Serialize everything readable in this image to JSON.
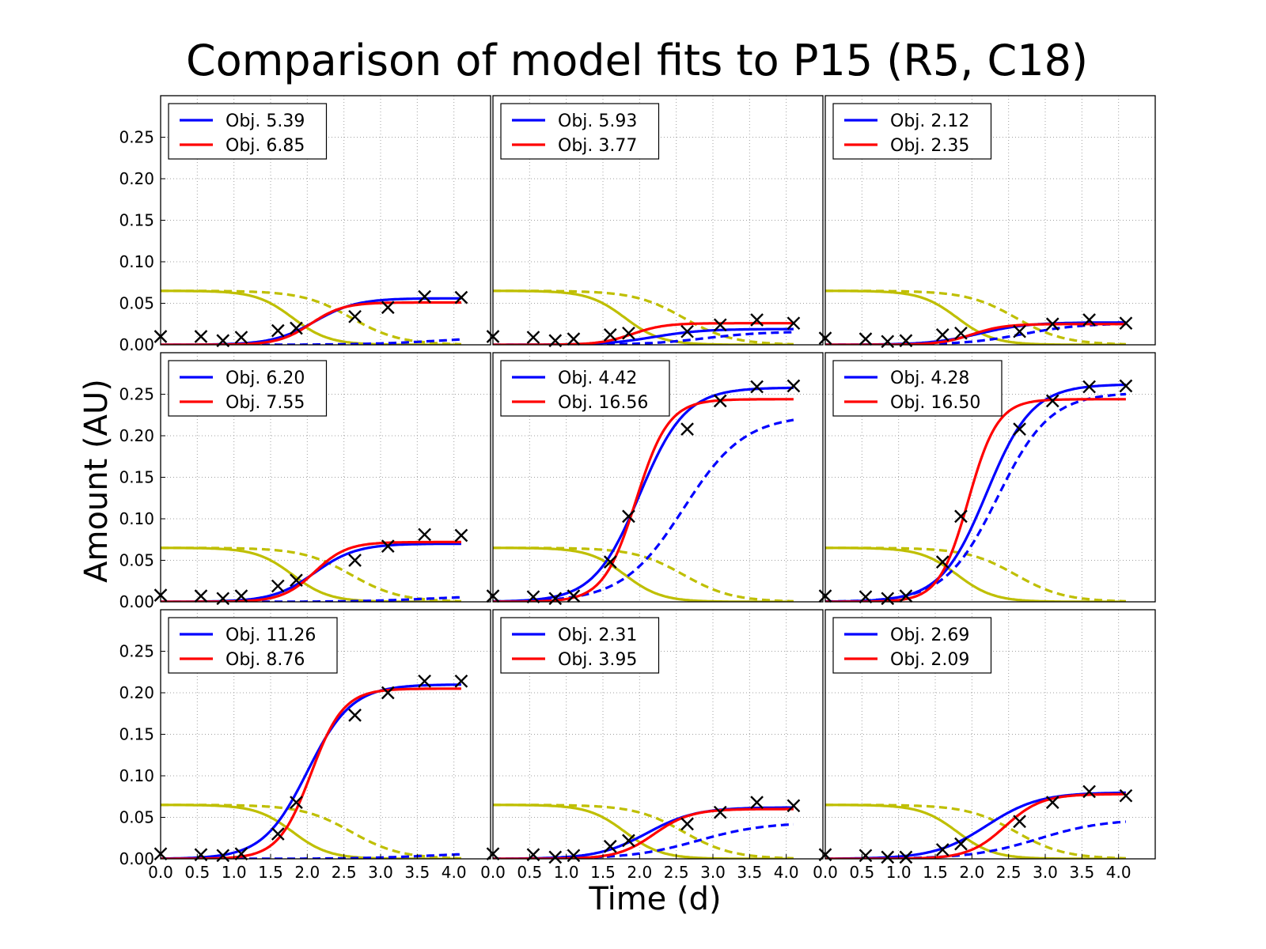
{
  "chart_data": {
    "type": "line",
    "title": "Comparison of model fits to P15 (R5, C18)",
    "xlabel": "Time (d)",
    "ylabel": "Amount (AU)",
    "xlim": [
      0.0,
      4.5
    ],
    "ylim": [
      0.0,
      0.3
    ],
    "xticks": [
      "0.0",
      "0.5",
      "1.0",
      "1.5",
      "2.0",
      "2.5",
      "3.0",
      "3.5",
      "4.0"
    ],
    "yticks": [
      "0.00",
      "0.05",
      "0.10",
      "0.15",
      "0.20",
      "0.25"
    ],
    "grid": true,
    "legend_position": "top-left",
    "layout": {
      "rows": 3,
      "cols": 3
    },
    "colors": {
      "blue": "#0000ff",
      "red": "#ff0000",
      "yellow": "#bfbf00",
      "marker": "#000000"
    },
    "panels": [
      {
        "legend": [
          "Obj. 5.39",
          "Obj. 6.85"
        ],
        "data": [
          [
            0.0,
            0.01
          ],
          [
            0.55,
            0.01
          ],
          [
            0.85,
            0.005
          ],
          [
            1.1,
            0.009
          ],
          [
            1.6,
            0.017
          ],
          [
            1.85,
            0.02
          ],
          [
            2.65,
            0.034
          ],
          [
            3.1,
            0.045
          ],
          [
            3.6,
            0.058
          ],
          [
            4.1,
            0.057
          ]
        ],
        "blue": {
          "A": 0.056,
          "k": 3.5,
          "t0": 2.1
        },
        "red": {
          "A": 0.051,
          "k": 4.5,
          "t0": 2.05
        },
        "blue_dashed": {
          "A": 0.01,
          "k": 2.0,
          "t0": 3.8
        },
        "yellow": {
          "A": 0.065,
          "k": 4.0,
          "t0": 1.8
        },
        "yellow_dashed": {
          "A": 0.065,
          "k": 3.0,
          "t0": 2.6
        }
      },
      {
        "legend": [
          "Obj. 5.93",
          "Obj. 3.77"
        ],
        "data": [
          [
            0.0,
            0.01
          ],
          [
            0.55,
            0.009
          ],
          [
            0.85,
            0.005
          ],
          [
            1.1,
            0.007
          ],
          [
            1.6,
            0.012
          ],
          [
            1.85,
            0.014
          ],
          [
            2.65,
            0.016
          ],
          [
            3.1,
            0.024
          ],
          [
            3.6,
            0.03
          ],
          [
            4.1,
            0.026
          ]
        ],
        "blue": {
          "A": 0.019,
          "k": 3.0,
          "t0": 2.2
        },
        "red": {
          "A": 0.026,
          "k": 4.5,
          "t0": 1.9
        },
        "blue_dashed": {
          "A": 0.016,
          "k": 2.5,
          "t0": 2.9
        },
        "yellow": {
          "A": 0.065,
          "k": 4.0,
          "t0": 1.8
        },
        "yellow_dashed": {
          "A": 0.065,
          "k": 3.0,
          "t0": 2.6
        }
      },
      {
        "legend": [
          "Obj. 2.12",
          "Obj. 2.35"
        ],
        "data": [
          [
            0.0,
            0.008
          ],
          [
            0.55,
            0.007
          ],
          [
            0.85,
            0.004
          ],
          [
            1.1,
            0.005
          ],
          [
            1.6,
            0.012
          ],
          [
            1.85,
            0.014
          ],
          [
            2.65,
            0.016
          ],
          [
            3.1,
            0.025
          ],
          [
            3.6,
            0.03
          ],
          [
            4.1,
            0.026
          ]
        ],
        "blue": {
          "A": 0.027,
          "k": 3.0,
          "t0": 2.1
        },
        "red": {
          "A": 0.025,
          "k": 4.5,
          "t0": 2.0
        },
        "blue_dashed": {
          "A": 0.026,
          "k": 2.5,
          "t0": 2.7
        },
        "yellow": {
          "A": 0.065,
          "k": 4.0,
          "t0": 1.8
        },
        "yellow_dashed": {
          "A": 0.065,
          "k": 3.0,
          "t0": 2.6
        }
      },
      {
        "legend": [
          "Obj. 6.20",
          "Obj. 7.55"
        ],
        "data": [
          [
            0.0,
            0.008
          ],
          [
            0.55,
            0.007
          ],
          [
            0.85,
            0.004
          ],
          [
            1.1,
            0.007
          ],
          [
            1.6,
            0.019
          ],
          [
            1.85,
            0.026
          ],
          [
            2.65,
            0.05
          ],
          [
            3.1,
            0.067
          ],
          [
            3.6,
            0.081
          ],
          [
            4.1,
            0.08
          ]
        ],
        "blue": {
          "A": 0.07,
          "k": 3.5,
          "t0": 2.1
        },
        "red": {
          "A": 0.072,
          "k": 4.5,
          "t0": 2.1
        },
        "blue_dashed": {
          "A": 0.008,
          "k": 2.0,
          "t0": 3.7
        },
        "yellow": {
          "A": 0.065,
          "k": 4.0,
          "t0": 1.8
        },
        "yellow_dashed": {
          "A": 0.065,
          "k": 3.0,
          "t0": 2.6
        }
      },
      {
        "legend": [
          "Obj. 4.42",
          "Obj. 16.56"
        ],
        "data": [
          [
            0.0,
            0.007
          ],
          [
            0.55,
            0.006
          ],
          [
            0.85,
            0.004
          ],
          [
            1.1,
            0.007
          ],
          [
            1.6,
            0.048
          ],
          [
            1.85,
            0.103
          ],
          [
            2.65,
            0.208
          ],
          [
            3.1,
            0.242
          ],
          [
            3.6,
            0.259
          ],
          [
            4.1,
            0.26
          ]
        ],
        "blue": {
          "A": 0.258,
          "k": 3.2,
          "t0": 2.0
        },
        "red": {
          "A": 0.244,
          "k": 4.5,
          "t0": 1.95
        },
        "blue_dashed": {
          "A": 0.225,
          "k": 2.4,
          "t0": 2.6
        },
        "yellow": {
          "A": 0.065,
          "k": 4.0,
          "t0": 1.8
        },
        "yellow_dashed": {
          "A": 0.065,
          "k": 3.0,
          "t0": 2.6
        }
      },
      {
        "legend": [
          "Obj. 4.28",
          "Obj. 16.50"
        ],
        "data": [
          [
            0.0,
            0.007
          ],
          [
            0.55,
            0.006
          ],
          [
            0.85,
            0.004
          ],
          [
            1.1,
            0.007
          ],
          [
            1.6,
            0.048
          ],
          [
            1.85,
            0.103
          ],
          [
            2.65,
            0.208
          ],
          [
            3.1,
            0.242
          ],
          [
            3.6,
            0.259
          ],
          [
            4.1,
            0.26
          ]
        ],
        "blue": {
          "A": 0.262,
          "k": 3.2,
          "t0": 2.2
        },
        "red": {
          "A": 0.244,
          "k": 5.0,
          "t0": 1.95
        },
        "blue_dashed": {
          "A": 0.252,
          "k": 2.8,
          "t0": 2.35
        },
        "yellow": {
          "A": 0.065,
          "k": 4.0,
          "t0": 1.8
        },
        "yellow_dashed": {
          "A": 0.065,
          "k": 3.0,
          "t0": 2.6
        }
      },
      {
        "legend": [
          "Obj. 11.26",
          "Obj. 8.76"
        ],
        "data": [
          [
            0.0,
            0.006
          ],
          [
            0.55,
            0.005
          ],
          [
            0.85,
            0.004
          ],
          [
            1.1,
            0.006
          ],
          [
            1.6,
            0.03
          ],
          [
            1.85,
            0.068
          ],
          [
            2.65,
            0.173
          ],
          [
            3.1,
            0.2
          ],
          [
            3.6,
            0.214
          ],
          [
            4.1,
            0.214
          ]
        ],
        "blue": {
          "A": 0.21,
          "k": 3.3,
          "t0": 2.0
        },
        "red": {
          "A": 0.205,
          "k": 4.5,
          "t0": 2.05
        },
        "blue_dashed": {
          "A": 0.008,
          "k": 2.0,
          "t0": 3.7
        },
        "yellow": {
          "A": 0.065,
          "k": 4.0,
          "t0": 1.8
        },
        "yellow_dashed": {
          "A": 0.065,
          "k": 3.0,
          "t0": 2.6
        }
      },
      {
        "legend": [
          "Obj. 2.31",
          "Obj. 3.95"
        ],
        "data": [
          [
            0.0,
            0.006
          ],
          [
            0.55,
            0.005
          ],
          [
            0.85,
            0.002
          ],
          [
            1.1,
            0.004
          ],
          [
            1.6,
            0.015
          ],
          [
            1.85,
            0.022
          ],
          [
            2.65,
            0.042
          ],
          [
            3.1,
            0.056
          ],
          [
            3.6,
            0.068
          ],
          [
            4.1,
            0.064
          ]
        ],
        "blue": {
          "A": 0.062,
          "k": 3.0,
          "t0": 2.1
        },
        "red": {
          "A": 0.06,
          "k": 4.0,
          "t0": 2.2
        },
        "blue_dashed": {
          "A": 0.044,
          "k": 2.2,
          "t0": 2.8
        },
        "yellow": {
          "A": 0.065,
          "k": 4.0,
          "t0": 1.8
        },
        "yellow_dashed": {
          "A": 0.065,
          "k": 3.0,
          "t0": 2.6
        }
      },
      {
        "legend": [
          "Obj. 2.69",
          "Obj. 2.09"
        ],
        "data": [
          [
            0.0,
            0.005
          ],
          [
            0.55,
            0.004
          ],
          [
            0.85,
            0.002
          ],
          [
            1.1,
            0.002
          ],
          [
            1.6,
            0.011
          ],
          [
            1.85,
            0.018
          ],
          [
            2.65,
            0.045
          ],
          [
            3.1,
            0.068
          ],
          [
            3.6,
            0.081
          ],
          [
            4.1,
            0.076
          ]
        ],
        "blue": {
          "A": 0.08,
          "k": 2.8,
          "t0": 2.2
        },
        "red": {
          "A": 0.078,
          "k": 4.0,
          "t0": 2.45
        },
        "blue_dashed": {
          "A": 0.048,
          "k": 2.2,
          "t0": 2.9
        },
        "yellow": {
          "A": 0.065,
          "k": 4.0,
          "t0": 1.8
        },
        "yellow_dashed": {
          "A": 0.065,
          "k": 3.0,
          "t0": 2.6
        }
      }
    ]
  }
}
